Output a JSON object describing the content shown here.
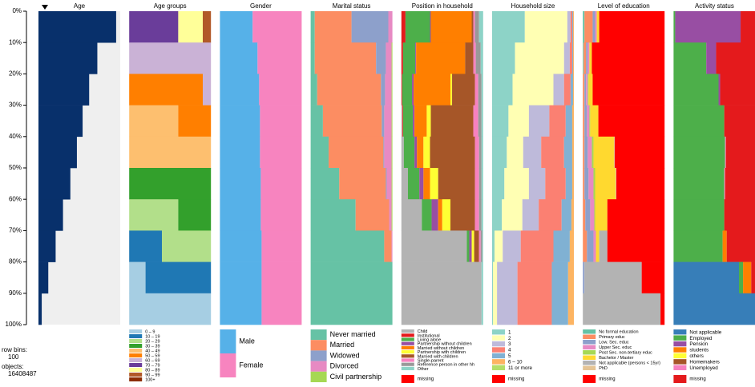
{
  "info": {
    "row_bins_label": "row bins:",
    "row_bins": "100",
    "objects_label": "objects:",
    "objects": "16408487"
  },
  "chart_data": [
    {
      "type": "bar",
      "title": "Age",
      "orientation": "horizontal",
      "color": "#08306b",
      "background": "#efefef",
      "xlim": [
        0,
        100
      ],
      "values": [
        95,
        72,
        62,
        54,
        47,
        39,
        30,
        21,
        12,
        4
      ],
      "ylim": [
        0,
        100
      ],
      "yticks": [
        {
          "value": 0,
          "label": "0%"
        },
        {
          "value": 10,
          "label": "10%"
        },
        {
          "value": 20,
          "label": "20%"
        },
        {
          "value": 30,
          "label": "30%"
        },
        {
          "value": 40,
          "label": "40%"
        },
        {
          "value": 50,
          "label": "50%"
        },
        {
          "value": 60,
          "label": "60%"
        },
        {
          "value": 70,
          "label": "70%"
        },
        {
          "value": 80,
          "label": "80%"
        },
        {
          "value": 90,
          "label": "90%"
        },
        {
          "value": 100,
          "label": "100%"
        }
      ]
    },
    {
      "type": "stacked_bar",
      "title": "Age groups",
      "series": [
        {
          "name": "0 – 9",
          "color": "#a6cee3",
          "values": [
            0,
            0,
            0,
            0,
            0,
            0,
            0,
            0,
            20,
            100
          ]
        },
        {
          "name": "10 – 19",
          "color": "#1f78b4",
          "values": [
            0,
            0,
            0,
            0,
            0,
            0,
            0,
            40,
            80,
            0
          ]
        },
        {
          "name": "20 – 29",
          "color": "#b2df8a",
          "values": [
            0,
            0,
            0,
            0,
            0,
            0,
            60,
            60,
            0,
            0
          ]
        },
        {
          "name": "30 – 39",
          "color": "#33a02c",
          "values": [
            0,
            0,
            0,
            0,
            0,
            100,
            40,
            0,
            0,
            0
          ]
        },
        {
          "name": "40 – 49",
          "color": "#fdbf6f",
          "values": [
            0,
            0,
            0,
            60,
            100,
            0,
            0,
            0,
            0,
            0
          ]
        },
        {
          "name": "50 – 59",
          "color": "#ff7f00",
          "values": [
            0,
            0,
            90,
            40,
            0,
            0,
            0,
            0,
            0,
            0
          ]
        },
        {
          "name": "60 – 69",
          "color": "#cab2d6",
          "values": [
            0,
            100,
            10,
            0,
            0,
            0,
            0,
            0,
            0,
            0
          ]
        },
        {
          "name": "70 – 79",
          "color": "#6a3d9a",
          "values": [
            60,
            0,
            0,
            0,
            0,
            0,
            0,
            0,
            0,
            0
          ]
        },
        {
          "name": "80 – 89",
          "color": "#ffff99",
          "values": [
            30,
            0,
            0,
            0,
            0,
            0,
            0,
            0,
            0,
            0
          ]
        },
        {
          "name": "90 – 99",
          "color": "#b15928",
          "values": [
            10,
            0,
            0,
            0,
            0,
            0,
            0,
            0,
            0,
            0
          ]
        },
        {
          "name": "100+",
          "color": "#8c2d04",
          "values": [
            0,
            0,
            0,
            0,
            0,
            0,
            0,
            0,
            0,
            0
          ]
        }
      ]
    },
    {
      "type": "stacked_bar",
      "title": "Gender",
      "series": [
        {
          "name": "Male",
          "color": "#56b1e8",
          "values": [
            40,
            46,
            48,
            49,
            49,
            50,
            50,
            51,
            51,
            51
          ]
        },
        {
          "name": "Female",
          "color": "#f784bf",
          "values": [
            60,
            54,
            52,
            51,
            51,
            50,
            50,
            49,
            49,
            49
          ]
        }
      ]
    },
    {
      "type": "stacked_bar",
      "title": "Marital status",
      "series": [
        {
          "name": "Never married",
          "color": "#66c2a5",
          "values": [
            5,
            5,
            8,
            15,
            22,
            35,
            55,
            90,
            100,
            100
          ]
        },
        {
          "name": "Married",
          "color": "#fc8d62",
          "values": [
            45,
            75,
            78,
            72,
            67,
            57,
            41,
            9,
            0,
            0
          ]
        },
        {
          "name": "Widowed",
          "color": "#8da0cb",
          "values": [
            45,
            12,
            5,
            3,
            1,
            1,
            0,
            0,
            0,
            0
          ]
        },
        {
          "name": "Divorced",
          "color": "#e78ac3",
          "values": [
            5,
            7,
            8,
            9,
            9,
            6,
            3,
            1,
            0,
            0
          ]
        },
        {
          "name": "Civil partnership",
          "color": "#a6d854",
          "values": [
            0,
            1,
            1,
            1,
            1,
            1,
            1,
            0,
            0,
            0
          ]
        }
      ]
    },
    {
      "type": "stacked_bar",
      "title": "Position in household",
      "series": [
        {
          "name": "Child",
          "color": "#b3b3b3",
          "values": [
            0,
            0,
            0,
            1,
            3,
            8,
            25,
            80,
            98,
            98
          ]
        },
        {
          "name": "Institutional",
          "color": "#e41a1c",
          "values": [
            5,
            2,
            1,
            1,
            0,
            0,
            0,
            0,
            0,
            0
          ]
        },
        {
          "name": "Living alone",
          "color": "#4daf4a",
          "values": [
            30,
            15,
            12,
            12,
            13,
            14,
            12,
            3,
            0,
            0
          ]
        },
        {
          "name": "Partnership without children",
          "color": "#984ea3",
          "values": [
            1,
            1,
            2,
            2,
            3,
            5,
            8,
            3,
            0,
            0
          ]
        },
        {
          "name": "Married without children",
          "color": "#ff7f00",
          "values": [
            50,
            60,
            45,
            15,
            8,
            8,
            5,
            0,
            0,
            0
          ]
        },
        {
          "name": "Partnership with children",
          "color": "#ffff33",
          "values": [
            0,
            0,
            2,
            5,
            8,
            10,
            10,
            3,
            0,
            0
          ]
        },
        {
          "name": "Married with children",
          "color": "#a65628",
          "values": [
            2,
            10,
            28,
            52,
            55,
            45,
            30,
            6,
            0,
            0
          ]
        },
        {
          "name": "Single-parent",
          "color": "#f781bf",
          "values": [
            2,
            3,
            4,
            6,
            5,
            5,
            5,
            2,
            0,
            0
          ]
        },
        {
          "name": "Reference person in other hh",
          "color": "#999999",
          "values": [
            5,
            6,
            4,
            4,
            3,
            3,
            3,
            2,
            0,
            0
          ]
        },
        {
          "name": "Other",
          "color": "#8dd3c7",
          "values": [
            5,
            3,
            2,
            2,
            2,
            2,
            2,
            1,
            2,
            2
          ]
        },
        {
          "name": "missing",
          "color": "#ff0000",
          "values": [
            0,
            0,
            0,
            0,
            0,
            0,
            0,
            0,
            0,
            0
          ]
        }
      ]
    },
    {
      "type": "stacked_bar",
      "title": "Household size",
      "series": [
        {
          "name": "1",
          "color": "#8dd3c7",
          "values": [
            40,
            28,
            25,
            20,
            18,
            15,
            12,
            3,
            1,
            1
          ]
        },
        {
          "name": "2",
          "color": "#ffffb3",
          "values": [
            52,
            60,
            50,
            25,
            20,
            30,
            25,
            10,
            5,
            5
          ]
        },
        {
          "name": "3",
          "color": "#bebada",
          "values": [
            4,
            7,
            13,
            25,
            22,
            20,
            20,
            22,
            25,
            25
          ]
        },
        {
          "name": "4",
          "color": "#fb8072",
          "values": [
            2,
            3,
            8,
            20,
            28,
            25,
            28,
            40,
            42,
            42
          ]
        },
        {
          "name": "5",
          "color": "#80b1d3",
          "values": [
            1,
            1,
            3,
            8,
            10,
            8,
            12,
            20,
            20,
            20
          ]
        },
        {
          "name": "6 – 10",
          "color": "#fdb462",
          "values": [
            1,
            1,
            1,
            2,
            2,
            2,
            3,
            5,
            7,
            7
          ]
        },
        {
          "name": "11 or more",
          "color": "#b3de69",
          "values": [
            0,
            0,
            0,
            0,
            0,
            0,
            0,
            0,
            0,
            0
          ]
        },
        {
          "name": "missing",
          "color": "#ff0000",
          "values": [
            0,
            0,
            0,
            0,
            0,
            0,
            0,
            0,
            0,
            0
          ]
        }
      ]
    },
    {
      "type": "stacked_bar",
      "title": "Level of education",
      "series": [
        {
          "name": "No formal education",
          "color": "#66c2a5",
          "values": [
            2,
            1,
            0,
            0,
            0,
            0,
            0,
            0,
            0,
            0
          ]
        },
        {
          "name": "Primary educ",
          "color": "#fc8d62",
          "values": [
            10,
            3,
            2,
            2,
            2,
            2,
            3,
            5,
            0,
            0
          ]
        },
        {
          "name": "Low. Sec. educ",
          "color": "#8da0cb",
          "values": [
            3,
            2,
            2,
            3,
            4,
            5,
            6,
            8,
            2,
            0
          ]
        },
        {
          "name": "Upper Sec. educ",
          "color": "#e78ac3",
          "values": [
            2,
            2,
            2,
            3,
            5,
            6,
            5,
            3,
            0,
            0
          ]
        },
        {
          "name": "Post Sec. non-tertiary educ",
          "color": "#a6d854",
          "values": [
            0,
            0,
            1,
            1,
            2,
            2,
            1,
            0,
            0,
            0
          ]
        },
        {
          "name": "Bachelor / Master",
          "color": "#ffd92f",
          "values": [
            3,
            3,
            5,
            10,
            25,
            25,
            15,
            4,
            0,
            0
          ]
        },
        {
          "name": "Not applicable (persons < 15yr)",
          "color": "#b3b3b3",
          "values": [
            0,
            0,
            0,
            0,
            0,
            0,
            0,
            10,
            70,
            95
          ]
        },
        {
          "name": "PhD",
          "color": "#e5c494",
          "values": [
            0,
            0,
            0,
            0,
            1,
            1,
            0,
            0,
            0,
            0
          ]
        },
        {
          "name": "missing",
          "color": "#ff0000",
          "values": [
            80,
            89,
            88,
            81,
            61,
            59,
            70,
            70,
            28,
            5
          ]
        }
      ]
    },
    {
      "type": "stacked_bar",
      "title": "Activity status",
      "series": [
        {
          "name": "Not applicable",
          "color": "#377eb8",
          "values": [
            0,
            0,
            0,
            0,
            0,
            0,
            0,
            0,
            80,
            100
          ]
        },
        {
          "name": "Employed",
          "color": "#4daf4a",
          "values": [
            2,
            40,
            55,
            62,
            63,
            62,
            62,
            60,
            5,
            0
          ]
        },
        {
          "name": "Pension",
          "color": "#984ea3",
          "values": [
            80,
            12,
            2,
            0,
            0,
            0,
            0,
            0,
            0,
            0
          ]
        },
        {
          "name": "students",
          "color": "#ff7f00",
          "values": [
            0,
            0,
            0,
            0,
            0,
            0,
            0,
            5,
            10,
            0
          ]
        },
        {
          "name": "others",
          "color": "#ffff33",
          "values": [
            0,
            0,
            0,
            0,
            0,
            0,
            0,
            0,
            0,
            0
          ]
        },
        {
          "name": "Homemakers",
          "color": "#a65628",
          "values": [
            0,
            0,
            0,
            0,
            0,
            0,
            0,
            0,
            0,
            0
          ]
        },
        {
          "name": "Unemployed",
          "color": "#f781bf",
          "values": [
            0,
            0,
            0,
            0,
            1,
            1,
            0,
            0,
            0,
            0
          ]
        },
        {
          "name": "missing",
          "color": "#e41a1c",
          "values": [
            18,
            48,
            43,
            38,
            36,
            37,
            38,
            35,
            5,
            0
          ]
        }
      ]
    }
  ]
}
